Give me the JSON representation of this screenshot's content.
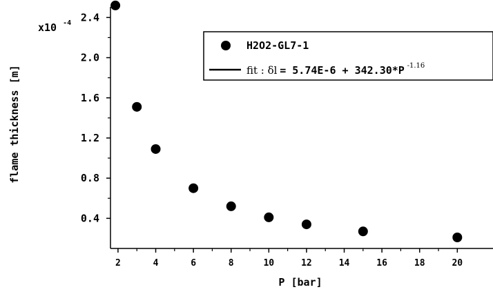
{
  "chart_data": {
    "type": "scatter",
    "xlabel": "P [bar]",
    "ylabel": "flame thickness [m]",
    "xlim": [
      1.6,
      20
    ],
    "ylim": [
      0.1,
      2.5
    ],
    "x_ticks": [
      2,
      4,
      6,
      8,
      10,
      12,
      14,
      16,
      18,
      20
    ],
    "x_tick_labels": [
      "2",
      "4",
      "6",
      "8",
      "10",
      "12",
      "14",
      "16",
      "18",
      "20"
    ],
    "y_ticks": [
      0.4,
      0.8,
      1.2,
      1.6,
      2.0,
      2.4
    ],
    "y_tick_labels": [
      "0.4",
      "0.8",
      "1.2",
      "1.6",
      "2.0",
      "2.4"
    ],
    "y_multiplier_label": "x10",
    "y_multiplier_exponent": "-4",
    "grid": false,
    "legend_position": "top-right",
    "series": [
      {
        "name": "H2O2-GL7-1",
        "style": "markers",
        "color": "#000000",
        "x": [
          1.86,
          3.0,
          4.0,
          6.0,
          8.0,
          10.0,
          12.0,
          15.0,
          20.0
        ],
        "y": [
          2.52,
          1.51,
          1.09,
          0.7,
          0.52,
          0.41,
          0.34,
          0.27,
          0.21
        ]
      },
      {
        "name_prefix": "fit : ",
        "name_symbol": "δl",
        "name_formula": " = 5.74E-6 + 342.30*P",
        "name_exponent": "-1.16",
        "style": "line",
        "color": "#000000",
        "intercept": 5.74e-06,
        "coefficient": 342.3,
        "exponent": -1.16,
        "scale": 0.0001
      }
    ]
  }
}
